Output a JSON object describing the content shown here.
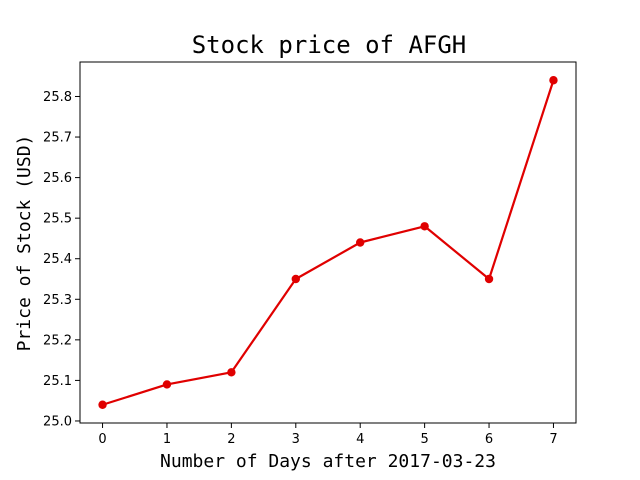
{
  "chart_data": {
    "type": "line",
    "title": "Stock price of AFGH",
    "xlabel": "Number of Days after 2017-03-23",
    "ylabel": "Price of Stock (USD)",
    "x": [
      0,
      1,
      2,
      3,
      4,
      5,
      6,
      7
    ],
    "y": [
      25.04,
      25.09,
      25.12,
      25.35,
      25.44,
      25.48,
      25.35,
      25.84
    ],
    "xlim": [
      -0.35,
      7.35
    ],
    "ylim": [
      24.995,
      25.885
    ],
    "xticks": [
      0,
      1,
      2,
      3,
      4,
      5,
      6,
      7
    ],
    "xtick_labels": [
      "0",
      "1",
      "2",
      "3",
      "4",
      "5",
      "6",
      "7"
    ],
    "yticks": [
      25.0,
      25.1,
      25.2,
      25.3,
      25.4,
      25.5,
      25.6,
      25.7,
      25.8
    ],
    "ytick_labels": [
      "25.0",
      "25.1",
      "25.2",
      "25.3",
      "25.4",
      "25.5",
      "25.6",
      "25.7",
      "25.8"
    ],
    "grid": false,
    "line_color": "#e00000",
    "marker": "circle"
  }
}
